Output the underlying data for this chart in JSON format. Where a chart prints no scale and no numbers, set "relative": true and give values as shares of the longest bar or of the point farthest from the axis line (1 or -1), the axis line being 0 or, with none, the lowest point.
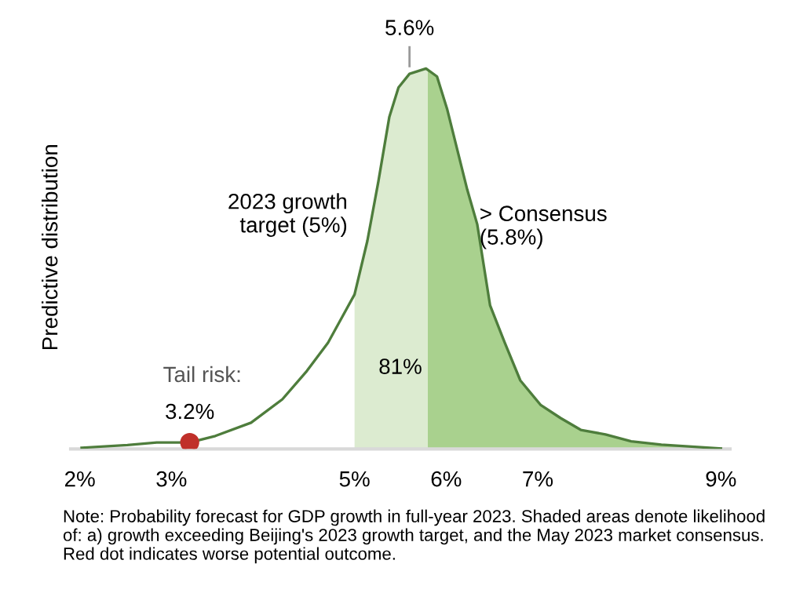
{
  "chart_data": {
    "type": "area",
    "ylabel": "Predictive distribution",
    "relative": true,
    "xlim": [
      1.9,
      9.1
    ],
    "xticks": [
      {
        "value": 2,
        "label": "2%"
      },
      {
        "value": 3,
        "label": "3%"
      },
      {
        "value": 5,
        "label": "5%"
      },
      {
        "value": 6,
        "label": "6%"
      },
      {
        "value": 7,
        "label": "7%"
      },
      {
        "value": 9,
        "label": "9%"
      }
    ],
    "series": [
      {
        "color": "#dcebd0",
        "x": [
          5.0,
          5.14,
          5.26,
          5.38,
          5.48,
          5.6,
          5.78,
          5.8
        ],
        "values": [
          0.406,
          0.547,
          0.703,
          0.873,
          0.95,
          0.986,
          1.0,
          0.997
        ]
      },
      {
        "color": "#a9d18e",
        "x": [
          5.8,
          5.9,
          6.01,
          6.12,
          6.23,
          6.34,
          6.48,
          6.64,
          6.81,
          7.03,
          7.25,
          7.47,
          7.74,
          8.02,
          8.35,
          8.68,
          9.0
        ],
        "values": [
          0.997,
          0.979,
          0.894,
          0.788,
          0.682,
          0.59,
          0.377,
          0.279,
          0.18,
          0.116,
          0.081,
          0.05,
          0.038,
          0.02,
          0.011,
          0.006,
          0.001
        ]
      },
      {
        "type": "line",
        "color": "#4e7d3c",
        "x": [
          2.02,
          2.52,
          2.84,
          3.2,
          3.48,
          3.87,
          4.21,
          4.48,
          4.71,
          4.87,
          5.0,
          5.14,
          5.26,
          5.38,
          5.48,
          5.6,
          5.78,
          5.9,
          6.01,
          6.12,
          6.23,
          6.34,
          6.48,
          6.64,
          6.81,
          7.03,
          7.25,
          7.47,
          7.74,
          8.02,
          8.35,
          8.68,
          9.0
        ],
        "values": [
          0.003,
          0.01,
          0.017,
          0.017,
          0.034,
          0.069,
          0.13,
          0.205,
          0.279,
          0.349,
          0.406,
          0.547,
          0.703,
          0.873,
          0.95,
          0.986,
          1.0,
          0.979,
          0.894,
          0.788,
          0.682,
          0.59,
          0.377,
          0.279,
          0.18,
          0.116,
          0.081,
          0.05,
          0.038,
          0.02,
          0.011,
          0.006,
          0.001
        ]
      },
      {
        "type": "scatter",
        "color": "#c0302a",
        "x": [
          3.2
        ],
        "values": [
          0.017
        ]
      }
    ],
    "annotations": [
      "2023 growth\ntarget (5%)",
      "> Consensus\n(5.8%)",
      "81%",
      {
        "text": "5.6%",
        "x": 5.6,
        "y": 0.986
      },
      "Tail risk:",
      {
        "text": "3.2%",
        "x": 3.2,
        "y": 0.017
      },
      "Note: Probability forecast for GDP growth in full-year 2023. Shaded areas denote likelihood of: a) growth exceeding Beijing's 2023 growth target, and the May 2023 market consensus. Red dot indicates worse potential outcome."
    ]
  }
}
